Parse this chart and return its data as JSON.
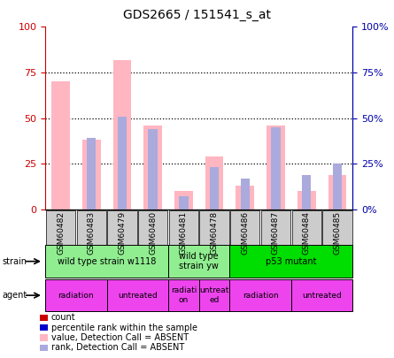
{
  "title": "GDS2665 / 151541_s_at",
  "samples": [
    "GSM60482",
    "GSM60483",
    "GSM60479",
    "GSM60480",
    "GSM60481",
    "GSM60478",
    "GSM60486",
    "GSM60487",
    "GSM60484",
    "GSM60485"
  ],
  "pink_bar_values": [
    70,
    38,
    82,
    46,
    10,
    29,
    13,
    46,
    10,
    19
  ],
  "blue_bar_values": [
    0,
    39,
    51,
    44,
    7,
    23,
    17,
    45,
    19,
    25
  ],
  "strain_groups": [
    {
      "label": "wild type strain w1118",
      "start": 0,
      "end": 4,
      "color": "#90EE90"
    },
    {
      "label": "wild type\nstrain yw",
      "start": 4,
      "end": 6,
      "color": "#90EE90"
    },
    {
      "label": "p53 mutant",
      "start": 6,
      "end": 10,
      "color": "#00DD00"
    }
  ],
  "agent_groups": [
    {
      "label": "radiation",
      "start": 0,
      "end": 2,
      "color": "#EE44EE"
    },
    {
      "label": "untreated",
      "start": 2,
      "end": 4,
      "color": "#EE44EE"
    },
    {
      "label": "radiati\non",
      "start": 4,
      "end": 5,
      "color": "#EE44EE"
    },
    {
      "label": "untreat\ned",
      "start": 5,
      "end": 6,
      "color": "#EE44EE"
    },
    {
      "label": "radiation",
      "start": 6,
      "end": 8,
      "color": "#EE44EE"
    },
    {
      "label": "untreated",
      "start": 8,
      "end": 10,
      "color": "#EE44EE"
    }
  ],
  "ylim": [
    0,
    100
  ],
  "yticks": [
    0,
    25,
    50,
    75,
    100
  ],
  "pink_color": "#FFB6C1",
  "blue_color": "#AAAADD",
  "red_legend_color": "#CC0000",
  "blue_legend_color": "#0000CC",
  "left_axis_color": "#CC0000",
  "right_axis_color": "#0000AA",
  "tick_label_bg": "#CCCCCC",
  "legend_labels": [
    "count",
    "percentile rank within the sample",
    "value, Detection Call = ABSENT",
    "rank, Detection Call = ABSENT"
  ],
  "legend_colors": [
    "#CC0000",
    "#0000CC",
    "#FFB6C1",
    "#AAAADD"
  ],
  "strain_label": "strain",
  "agent_label": "agent"
}
